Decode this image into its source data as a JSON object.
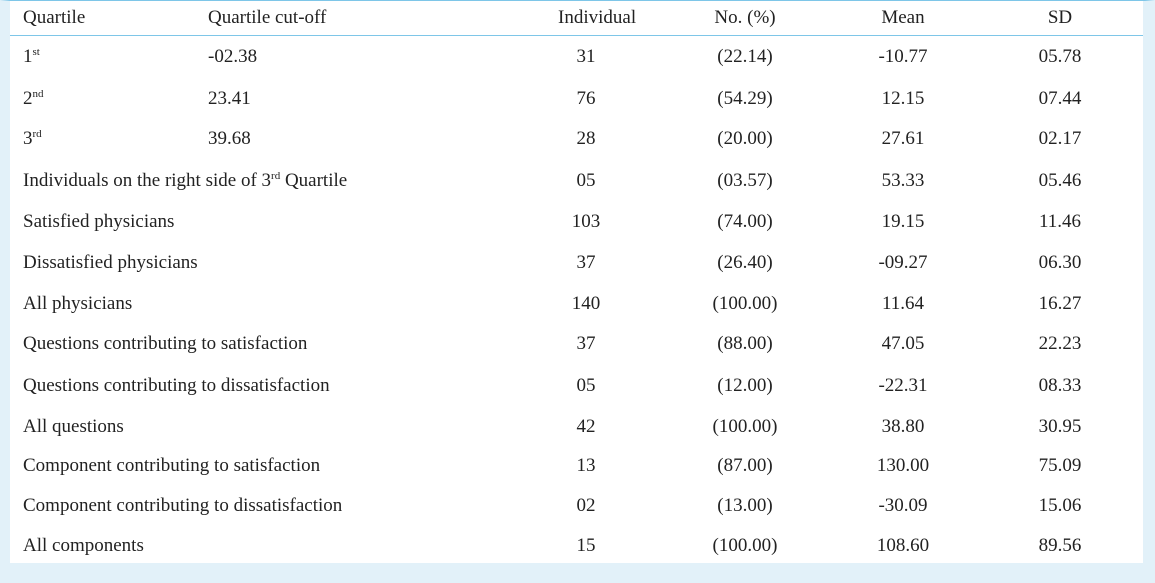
{
  "headers": {
    "quartile": "Quartile",
    "cutoff": "Quartile cut-off",
    "individual": "Individual",
    "pct": "No. (%)",
    "mean": "Mean",
    "sd": "SD"
  },
  "rows": [
    {
      "num": "1",
      "sup": "st",
      "cutoff": "-02.38",
      "ind": "31",
      "pct": "(22.14)",
      "mean": "-10.77",
      "sd": "05.78"
    },
    {
      "num": "2",
      "sup": "nd",
      "cutoff": "23.41",
      "ind": "76",
      "pct": "(54.29)",
      "mean": "12.15",
      "sd": "07.44"
    },
    {
      "num": "3",
      "sup": "rd",
      "cutoff": "39.68",
      "ind": "28",
      "pct": "(20.00)",
      "mean": "27.61",
      "sd": "02.17"
    },
    {
      "label_pre": "Individuals on the right side of 3",
      "sup": "rd",
      "label_post": " Quartile",
      "ind": "05",
      "pct": "(03.57)",
      "mean": "53.33",
      "sd": "05.46"
    },
    {
      "label": "Satisfied physicians",
      "ind": "103",
      "pct": "(74.00)",
      "mean": "19.15",
      "sd": "11.46"
    },
    {
      "label": "Dissatisfied physicians",
      "ind": "37",
      "pct": "(26.40)",
      "mean": "-09.27",
      "sd": "06.30"
    },
    {
      "label": "All physicians",
      "ind": "140",
      "pct": "(100.00)",
      "mean": "11.64",
      "sd": "16.27"
    },
    {
      "label": "Questions contributing to satisfaction",
      "ind": "37",
      "pct": "(88.00)",
      "mean": "47.05",
      "sd": "22.23"
    },
    {
      "label": "Questions contributing to dissatisfaction",
      "ind": "05",
      "pct": "(12.00)",
      "mean": "-22.31",
      "sd": "08.33"
    },
    {
      "label": "All questions",
      "ind": "42",
      "pct": "(100.00)",
      "mean": "38.80",
      "sd": "30.95"
    },
    {
      "label": "Component contributing to satisfaction",
      "ind": "13",
      "pct": "(87.00)",
      "mean": "130.00",
      "sd": "75.09"
    },
    {
      "label": "Component contributing to dissatisfaction",
      "ind": "02",
      "pct": "(13.00)",
      "mean": "-30.09",
      "sd": "15.06"
    },
    {
      "label": "All components",
      "ind": "15",
      "pct": "(100.00)",
      "mean": "108.60",
      "sd": "89.56"
    }
  ]
}
